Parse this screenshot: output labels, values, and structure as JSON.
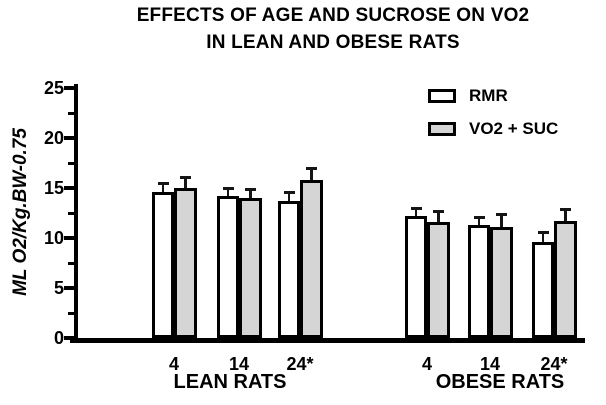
{
  "title": {
    "line1": "EFFECTS OF AGE AND SUCROSE ON VO2",
    "line2": "IN LEAN AND OBESE RATS"
  },
  "chart_data": {
    "type": "bar",
    "title": "EFFECTS OF AGE AND SUCROSE ON VO2 IN LEAN AND OBESE RATS",
    "ylabel": "ML O2/Kg.BW-0.75",
    "xlabel": "",
    "ylim": [
      0,
      25
    ],
    "y_major_ticks": [
      0,
      5,
      10,
      15,
      20,
      25
    ],
    "y_minor_tick_step": 2.5,
    "grid": false,
    "legend_position": "upper right",
    "bar_outline_color": "#000000",
    "error_bar_color": "#151515",
    "legend": [
      {
        "label": "RMR",
        "fill": "#ffffff"
      },
      {
        "label": "VO2 + SUC",
        "fill": "#d5d5d5"
      }
    ],
    "groups": [
      {
        "label": "LEAN RATS",
        "categories": [
          "4",
          "14",
          "24*"
        ],
        "series": [
          {
            "name": "RMR",
            "fill": "#ffffff",
            "values": [
              14.6,
              14.2,
              13.7
            ],
            "errors_plus": [
              0.9,
              0.8,
              0.9
            ]
          },
          {
            "name": "VO2 + SUC",
            "fill": "#d5d5d5",
            "values": [
              15.0,
              14.0,
              15.8
            ],
            "errors_plus": [
              1.1,
              0.9,
              1.2
            ]
          }
        ]
      },
      {
        "label": "OBESE RATS",
        "categories": [
          "4",
          "14",
          "24*"
        ],
        "series": [
          {
            "name": "RMR",
            "fill": "#ffffff",
            "values": [
              12.2,
              11.3,
              9.6
            ],
            "errors_plus": [
              0.8,
              0.8,
              1.0
            ]
          },
          {
            "name": "VO2 + SUC",
            "fill": "#d5d5d5",
            "values": [
              11.6,
              11.1,
              11.7
            ],
            "errors_plus": [
              1.1,
              1.3,
              1.2
            ]
          }
        ]
      }
    ]
  }
}
